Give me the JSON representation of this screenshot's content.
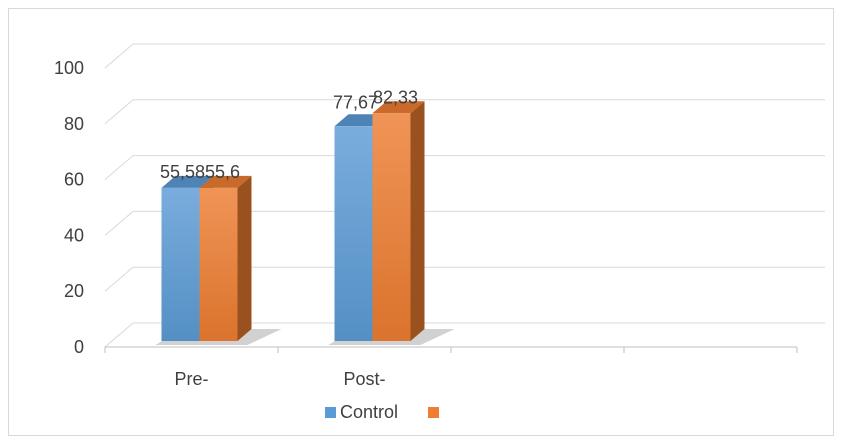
{
  "chart_data": {
    "type": "bar",
    "categories": [
      "Pre-",
      "Post-",
      "",
      ""
    ],
    "series": [
      {
        "name": "Control",
        "values": [
          55.58,
          77.67,
          null,
          null
        ],
        "labels": [
          "55,58",
          "77,67",
          "",
          ""
        ],
        "color": "#5b9bd5"
      },
      {
        "name": "",
        "values": [
          55.6,
          82.33,
          null,
          null
        ],
        "labels": [
          "55,6",
          "82,33",
          "",
          ""
        ],
        "color": "#ed7d31"
      }
    ],
    "ylim": [
      0,
      100
    ],
    "yticks": [
      0,
      20,
      40,
      60,
      80,
      100
    ],
    "ytick_labels": [
      "0",
      "20",
      "40",
      "60",
      "80",
      "100"
    ],
    "grid": true,
    "style": "3d-clustered-column",
    "legend_position": "bottom",
    "title": "",
    "xlabel": "",
    "ylabel": ""
  }
}
